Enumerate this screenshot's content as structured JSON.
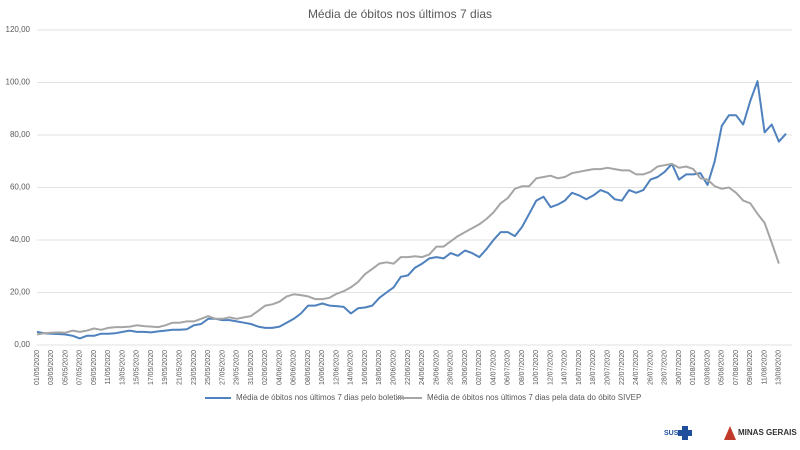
{
  "chart_data": {
    "type": "line",
    "title": "Média de óbitos nos últimos 7 dias",
    "categories": [
      "01/05/2020",
      null,
      "03/05/2020",
      null,
      "05/05/2020",
      null,
      "07/05/2020",
      null,
      "09/05/2020",
      null,
      "11/05/2020",
      null,
      "13/05/2020",
      null,
      "15/05/2020",
      null,
      "17/05/2020",
      null,
      "19/05/2020",
      null,
      "21/05/2020",
      null,
      "23/05/2020",
      null,
      "25/05/2020",
      null,
      "27/05/2020",
      null,
      "29/05/2020",
      null,
      "31/05/2020",
      null,
      "02/06/2020",
      null,
      "04/06/2020",
      null,
      "06/06/2020",
      null,
      "08/06/2020",
      null,
      "10/06/2020",
      null,
      "12/06/2020",
      null,
      "14/06/2020",
      null,
      "16/06/2020",
      null,
      "18/06/2020",
      null,
      "20/06/2020",
      null,
      "22/06/2020",
      null,
      "24/06/2020",
      null,
      "26/06/2020",
      null,
      "28/06/2020",
      null,
      "30/06/2020",
      null,
      "02/07/2020",
      null,
      "04/07/2020",
      null,
      "06/07/2020",
      null,
      "08/07/2020",
      null,
      "10/07/2020",
      null,
      "12/07/2020",
      null,
      "14/07/2020",
      null,
      "16/07/2020",
      null,
      "18/07/2020",
      null,
      "20/07/2020",
      null,
      "22/07/2020",
      null,
      "24/07/2020",
      null,
      "26/07/2020",
      null,
      "28/07/2020",
      null,
      "30/07/2020",
      null,
      "01/08/2020",
      null,
      "03/08/2020",
      null,
      "05/08/2020",
      null,
      "07/08/2020",
      null,
      "09/08/2020",
      null,
      "11/08/2020",
      null,
      "13/08/2020",
      null
    ],
    "series": [
      {
        "name": "Média de óbitos nos últimos 7 dias pelo boletim",
        "color": "#4e81bd",
        "values": [
          5,
          4.5,
          4.3,
          4.2,
          4,
          3.5,
          2.5,
          3.5,
          3.5,
          4.3,
          4.3,
          4.5,
          5,
          5.5,
          5,
          5,
          4.8,
          5.2,
          5.5,
          5.8,
          5.8,
          6,
          7.5,
          8,
          10,
          10,
          9.5,
          9.5,
          9,
          8.5,
          8,
          7,
          6.5,
          6.5,
          7,
          8.5,
          10,
          12,
          15,
          15,
          15.8,
          15,
          14.8,
          14.5,
          12,
          14,
          14.3,
          15,
          18,
          20,
          22,
          26,
          26.5,
          29.5,
          31,
          33,
          33.5,
          33,
          35,
          34,
          36,
          35,
          33.5,
          36.5,
          40,
          43,
          43,
          41.5,
          45,
          50,
          55,
          56.5,
          52.5,
          53.5,
          55,
          58,
          57,
          55.5,
          57,
          59,
          58,
          55.5,
          55,
          59,
          58,
          59,
          63,
          64,
          66,
          69,
          63,
          65,
          65,
          65.5,
          61,
          70,
          83.5,
          87.5,
          87.5,
          84,
          93,
          100.5,
          81,
          84,
          77.5,
          80.5
        ]
      },
      {
        "name": "Média de óbitos nos últimos 7 dias pela data do óbito SIVEP",
        "color": "#a5a5a5",
        "values": [
          4,
          4.5,
          4.7,
          4.8,
          4.7,
          5.5,
          5,
          5.5,
          6.3,
          5.8,
          6.5,
          6.8,
          6.8,
          7,
          7.5,
          7.2,
          7,
          6.8,
          7.5,
          8.5,
          8.5,
          9,
          9,
          10,
          11,
          10,
          10,
          10.5,
          10,
          10.5,
          11,
          13,
          15,
          15.5,
          16.5,
          18.5,
          19.3,
          19,
          18.5,
          17.5,
          17.5,
          18,
          19.5,
          20.5,
          22,
          24,
          27,
          29,
          31,
          31.5,
          31,
          33.5,
          33.5,
          33.8,
          33.5,
          34.5,
          37.5,
          37.5,
          39.5,
          41.5,
          43,
          44.5,
          46,
          48,
          50.5,
          54,
          56,
          59.5,
          60.5,
          60.5,
          63.5,
          64,
          64.5,
          63.5,
          64,
          65.5,
          66,
          66.5,
          67,
          67,
          67.5,
          67,
          66.5,
          66.5,
          65,
          65,
          66,
          68,
          68.5,
          69,
          67.5,
          68,
          67,
          63.5,
          63,
          60.5,
          59.5,
          60,
          58,
          55,
          54,
          50,
          46.5,
          39,
          31,
          null
        ]
      }
    ],
    "ylim": [
      0,
      120
    ],
    "yticks": [
      {
        "value": 0,
        "label": "0,00"
      },
      {
        "value": 20,
        "label": "20,00"
      },
      {
        "value": 40,
        "label": "40,00"
      },
      {
        "value": 60,
        "label": "60,00"
      },
      {
        "value": 80,
        "label": "80,00"
      },
      {
        "value": 100,
        "label": "100,00"
      },
      {
        "value": 120,
        "label": "120,00"
      }
    ],
    "grid": true,
    "legend": "bottom"
  },
  "logos": [
    "SUS",
    "MINAS GERAIS"
  ]
}
